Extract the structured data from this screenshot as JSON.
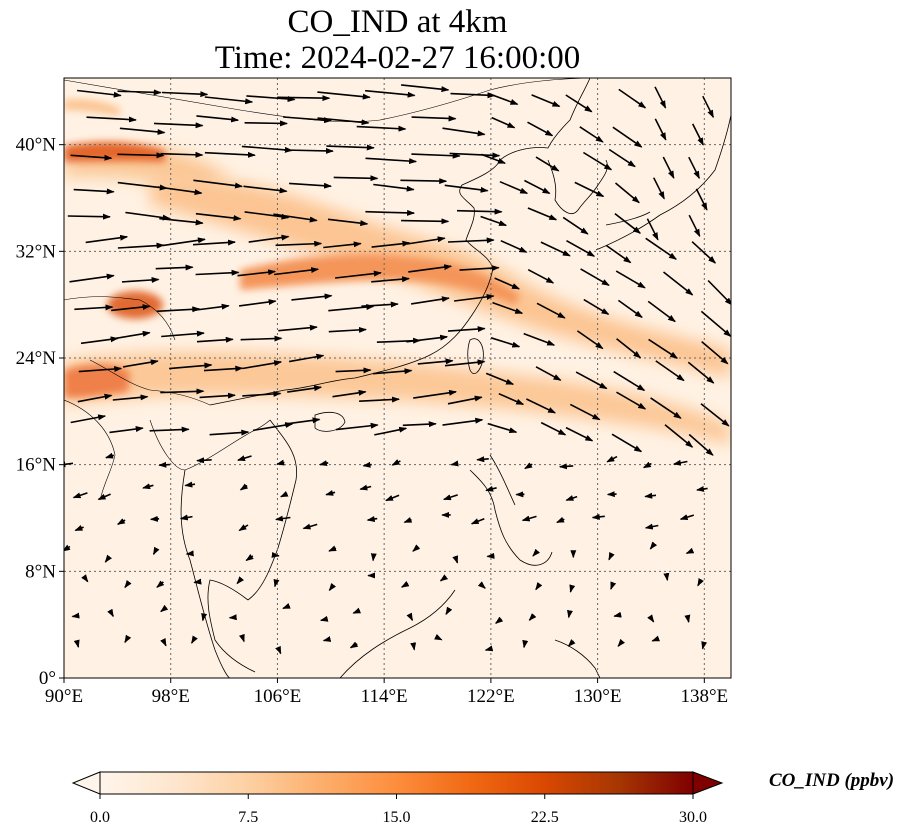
{
  "title": {
    "line1": "CO_IND at 4km",
    "line2": "Time: 2024-02-27 16:00:00"
  },
  "map": {
    "variable": "CO_IND",
    "level": "4km",
    "extent": {
      "lon": [
        90,
        140
      ],
      "lat": [
        0,
        45
      ]
    },
    "lon_ticks": [
      {
        "value": 90,
        "label": "90°E"
      },
      {
        "value": 98,
        "label": "98°E"
      },
      {
        "value": 106,
        "label": "106°E"
      },
      {
        "value": 114,
        "label": "114°E"
      },
      {
        "value": 122,
        "label": "122°E"
      },
      {
        "value": 130,
        "label": "130°E"
      },
      {
        "value": 138,
        "label": "138°E"
      }
    ],
    "lat_ticks": [
      {
        "value": 0,
        "label": "0°"
      },
      {
        "value": 8,
        "label": "8°N"
      },
      {
        "value": 16,
        "label": "16°N"
      },
      {
        "value": 24,
        "label": "24°N"
      },
      {
        "value": 32,
        "label": "32°N"
      },
      {
        "value": 40,
        "label": "40°N"
      }
    ],
    "plumes": [
      {
        "name": "north-band",
        "lat": 39.5,
        "lon_start": 90,
        "lon_end": 100,
        "intensity": 15
      },
      {
        "name": "central-band",
        "lat": 30.5,
        "lon_start": 102,
        "lon_end": 140,
        "intensity": 9
      },
      {
        "name": "sichuan-hotspot",
        "lat": 28,
        "lon_start": 94,
        "lon_end": 97,
        "intensity": 14
      },
      {
        "name": "south-band",
        "lat": 22.5,
        "lon_start": 90,
        "lon_end": 140,
        "intensity": 9
      }
    ]
  },
  "colorbar": {
    "label": "CO_IND (ppbv)",
    "min": 0,
    "max": 30,
    "extend": "both",
    "colors": [
      "#fff5eb",
      "#fee6ce",
      "#fdd0a2",
      "#fdae6b",
      "#fd8d3c",
      "#f16913",
      "#d94801",
      "#a63603",
      "#7f0000"
    ],
    "ticks": [
      "0.0",
      "7.5",
      "15.0",
      "22.5",
      "30.0"
    ]
  }
}
